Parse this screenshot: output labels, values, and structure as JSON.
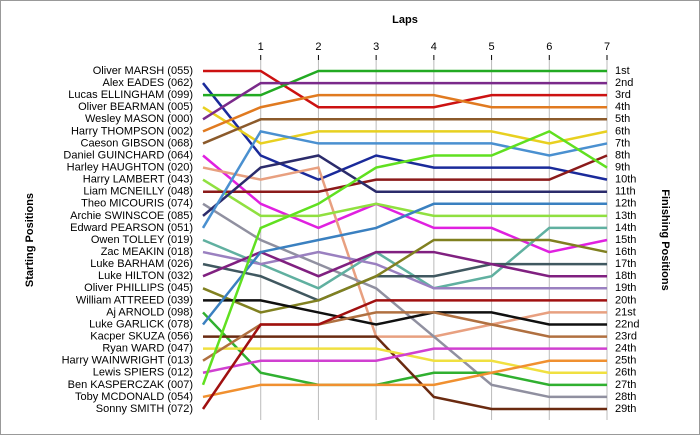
{
  "chart_data": {
    "type": "line",
    "x_label": "Laps",
    "y_label": "Starting Positions",
    "y2_label": "Finishing Positions",
    "x": [
      0,
      1,
      2,
      3,
      4,
      5,
      6,
      7
    ],
    "xlim": [
      0,
      7
    ],
    "xticks": [
      1,
      2,
      3,
      4,
      5,
      6,
      7
    ],
    "ylim": [
      29,
      1
    ],
    "y2lim": [
      29,
      1
    ],
    "y2ticks": [
      {
        "value": 1,
        "label": "1st"
      },
      {
        "value": 2,
        "label": "2nd"
      },
      {
        "value": 3,
        "label": "3rd"
      },
      {
        "value": 4,
        "label": "4th"
      },
      {
        "value": 5,
        "label": "5th"
      },
      {
        "value": 6,
        "label": "6th"
      },
      {
        "value": 7,
        "label": "7th"
      },
      {
        "value": 8,
        "label": "8th"
      },
      {
        "value": 9,
        "label": "9th"
      },
      {
        "value": 10,
        "label": "10th"
      },
      {
        "value": 11,
        "label": "11th"
      },
      {
        "value": 12,
        "label": "12th"
      },
      {
        "value": 13,
        "label": "13th"
      },
      {
        "value": 14,
        "label": "14th"
      },
      {
        "value": 15,
        "label": "15th"
      },
      {
        "value": 16,
        "label": "16th"
      },
      {
        "value": 17,
        "label": "17th"
      },
      {
        "value": 18,
        "label": "18th"
      },
      {
        "value": 19,
        "label": "19th"
      },
      {
        "value": 20,
        "label": "20th"
      },
      {
        "value": 21,
        "label": "21st"
      },
      {
        "value": 22,
        "label": "22nd"
      },
      {
        "value": 23,
        "label": "23rd"
      },
      {
        "value": 24,
        "label": "24th"
      },
      {
        "value": 25,
        "label": "25th"
      },
      {
        "value": 26,
        "label": "26th"
      },
      {
        "value": 27,
        "label": "27th"
      },
      {
        "value": 28,
        "label": "28th"
      },
      {
        "value": 29,
        "label": "29th"
      }
    ],
    "grid": true,
    "series": [
      {
        "name": "Oliver MARSH (055)",
        "color": "#cc1111",
        "values": [
          1,
          1,
          4,
          4,
          4,
          3,
          3,
          3
        ]
      },
      {
        "name": "Alex EADES (062)",
        "color": "#1a2a9a",
        "values": [
          2,
          8,
          10,
          8,
          9,
          9,
          9,
          10
        ]
      },
      {
        "name": "Lucas ELLINGHAM (099)",
        "color": "#22aa22",
        "values": [
          3,
          3,
          1,
          1,
          1,
          1,
          1,
          1
        ]
      },
      {
        "name": "Oliver BEARMAN (005)",
        "color": "#e8d020",
        "values": [
          4,
          7,
          6,
          6,
          6,
          6,
          7,
          6
        ]
      },
      {
        "name": "Wesley MASON (000)",
        "color": "#7a2a8a",
        "values": [
          5,
          2,
          2,
          2,
          2,
          2,
          2,
          2
        ]
      },
      {
        "name": "Harry THOMPSON (002)",
        "color": "#e07a20",
        "values": [
          6,
          4,
          3,
          3,
          3,
          4,
          4,
          4
        ]
      },
      {
        "name": "Caeson GIBSON (068)",
        "color": "#8b5a2b",
        "values": [
          7,
          5,
          5,
          5,
          5,
          5,
          5,
          5
        ]
      },
      {
        "name": "Daniel GUINCHARD (064)",
        "color": "#e020e0",
        "values": [
          8,
          12,
          14,
          12,
          14,
          14,
          16,
          15
        ]
      },
      {
        "name": "Harley HAUGHTON (020)",
        "color": "#e8a080",
        "values": [
          9,
          10,
          9,
          23,
          23,
          22,
          21,
          21
        ]
      },
      {
        "name": "Harry LAMBERT (043)",
        "color": "#90e040",
        "values": [
          10,
          13,
          13,
          12,
          13,
          13,
          13,
          13
        ]
      },
      {
        "name": "Liam MCNEILLY (048)",
        "color": "#8b1a1a",
        "values": [
          11,
          11,
          11,
          10,
          10,
          10,
          10,
          8
        ]
      },
      {
        "name": "Theo MICOURIS (074)",
        "color": "#9090a0",
        "values": [
          12,
          15,
          17,
          19,
          23,
          27,
          28,
          28
        ]
      },
      {
        "name": "Archie SWINSCOE (085)",
        "color": "#2b2b6b",
        "values": [
          13,
          9,
          8,
          11,
          11,
          11,
          11,
          11
        ]
      },
      {
        "name": "Edward PEARSON (051)",
        "color": "#4a90d0",
        "values": [
          14,
          6,
          7,
          7,
          7,
          7,
          8,
          7
        ]
      },
      {
        "name": "Owen TOLLEY (019)",
        "color": "#60b0a0",
        "values": [
          15,
          17,
          19,
          16,
          19,
          18,
          14,
          14
        ]
      },
      {
        "name": "Zac MEAKIN (018)",
        "color": "#9a80c0",
        "values": [
          16,
          17,
          16,
          17,
          19,
          19,
          19,
          19
        ]
      },
      {
        "name": "Luke BARHAM (026)",
        "color": "#405860",
        "values": [
          17,
          18,
          20,
          18,
          18,
          17,
          17,
          17
        ]
      },
      {
        "name": "Luke HILTON (032)",
        "color": "#802080",
        "values": [
          18,
          16,
          18,
          16,
          16,
          17,
          18,
          18
        ]
      },
      {
        "name": "Oliver PHILLIPS (045)",
        "color": "#808020",
        "values": [
          19,
          21,
          20,
          18,
          15,
          15,
          15,
          16
        ]
      },
      {
        "name": "William ATTREED (039)",
        "color": "#101010",
        "values": [
          20,
          20,
          21,
          22,
          21,
          21,
          22,
          22
        ]
      },
      {
        "name": "Aj ARNOLD (098)",
        "color": "#30b030",
        "values": [
          21,
          26,
          27,
          27,
          26,
          26,
          27,
          27
        ]
      },
      {
        "name": "Luke GARLICK (078)",
        "color": "#3a80c0",
        "values": [
          22,
          16,
          15,
          14,
          12,
          12,
          12,
          12
        ]
      },
      {
        "name": "Kacper SKUZA (056)",
        "color": "#6a2a10",
        "values": [
          23,
          23,
          23,
          23,
          28,
          29,
          29,
          29
        ]
      },
      {
        "name": "Ryan WARD (047)",
        "color": "#f0e040",
        "values": [
          24,
          24,
          24,
          24,
          25,
          25,
          26,
          26
        ]
      },
      {
        "name": "Harry WAINWRIGHT (013)",
        "color": "#b07040",
        "values": [
          25,
          22,
          22,
          21,
          21,
          22,
          23,
          23
        ]
      },
      {
        "name": "Lewis SPIERS (012)",
        "color": "#d040d0",
        "values": [
          26,
          25,
          25,
          25,
          24,
          24,
          24,
          24
        ]
      },
      {
        "name": "Ben KASPERCZAK (007)",
        "color": "#60e020",
        "values": [
          27,
          14,
          12,
          9,
          8,
          8,
          6,
          9
        ]
      },
      {
        "name": "Toby MCDONALD (054)",
        "color": "#f09030",
        "values": [
          28,
          27,
          27,
          27,
          27,
          26,
          25,
          25
        ]
      },
      {
        "name": "Sonny SMITH (072)",
        "color": "#a01010",
        "values": [
          29,
          22,
          22,
          20,
          20,
          20,
          20,
          20
        ]
      }
    ]
  }
}
